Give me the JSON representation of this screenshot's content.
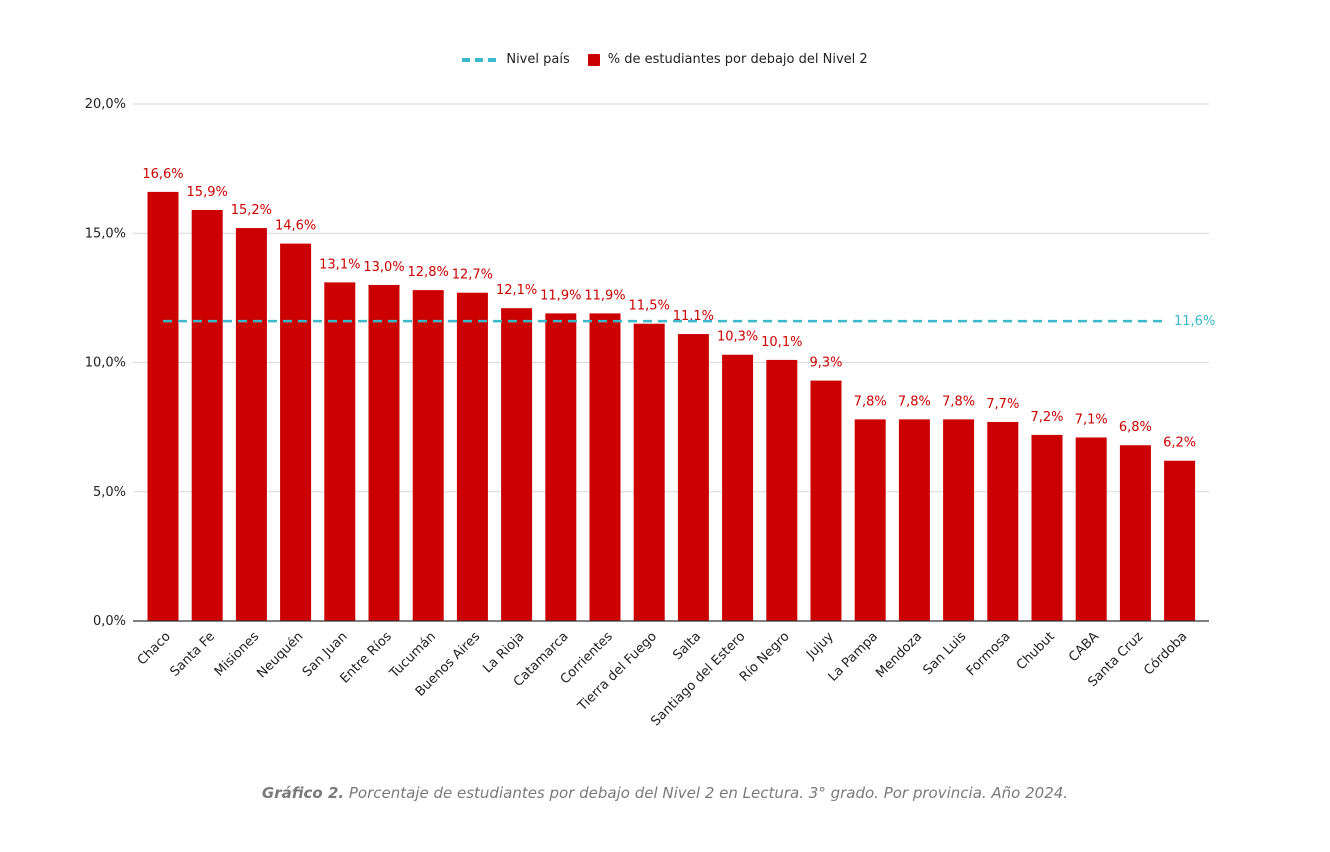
{
  "legend": {
    "line_label": "Nivel país",
    "bar_label": "% de estudiantes por debajo del Nivel 2"
  },
  "caption": {
    "label": "Gráfico 2.",
    "text": " Porcentaje de estudiantes por debajo del Nivel 2 en Lectura. 3° grado. Por provincia. Año 2024."
  },
  "colors": {
    "bar": "#cc0000",
    "line": "#3ab8cc",
    "bar_label": "#cc0000",
    "grid": "#d9d9d9",
    "axis": "#333333"
  },
  "chart_data": {
    "type": "bar",
    "categories": [
      "Chaco",
      "Santa Fe",
      "Misiones",
      "Neuquén",
      "San Juan",
      "Entre Ríos",
      "Tucumán",
      "Buenos Aires",
      "La Rioja",
      "Catamarca",
      "Corrientes",
      "Tierra del Fuego",
      "Salta",
      "Santiago del Estero",
      "Río Negro",
      "Jujuy",
      "La Pampa",
      "Mendoza",
      "San Luis",
      "Formosa",
      "Chubut",
      "CABA",
      "Santa Cruz",
      "Córdoba"
    ],
    "series": [
      {
        "name": "% de estudiantes por debajo del Nivel 2",
        "values": [
          16.6,
          15.9,
          15.2,
          14.6,
          13.1,
          13.0,
          12.8,
          12.7,
          12.1,
          11.9,
          11.9,
          11.5,
          11.1,
          10.3,
          10.1,
          9.3,
          7.8,
          7.8,
          7.8,
          7.7,
          7.2,
          7.1,
          6.8,
          6.2
        ],
        "labels": [
          "16,6%",
          "15,9%",
          "15,2%",
          "14,6%",
          "13,1%",
          "13,0%",
          "12,8%",
          "12,7%",
          "12,1%",
          "11,9%",
          "11,9%",
          "11,5%",
          "11,1%",
          "10,3%",
          "10,1%",
          "9,3%",
          "7,8%",
          "7,8%",
          "7,8%",
          "7,7%",
          "7,2%",
          "7,1%",
          "6,8%",
          "6,2%"
        ]
      }
    ],
    "reference_line": {
      "name": "Nivel país",
      "value": 11.6,
      "label": "11,6%"
    },
    "yticks": [
      0,
      5,
      10,
      15,
      20
    ],
    "ytick_labels": [
      "0,0%",
      "5,0%",
      "10,0%",
      "15,0%",
      "20,0%"
    ],
    "ylim": [
      0,
      20
    ],
    "grid": true,
    "legend_position": "top-center",
    "xlabel": "",
    "ylabel": "",
    "title": ""
  }
}
